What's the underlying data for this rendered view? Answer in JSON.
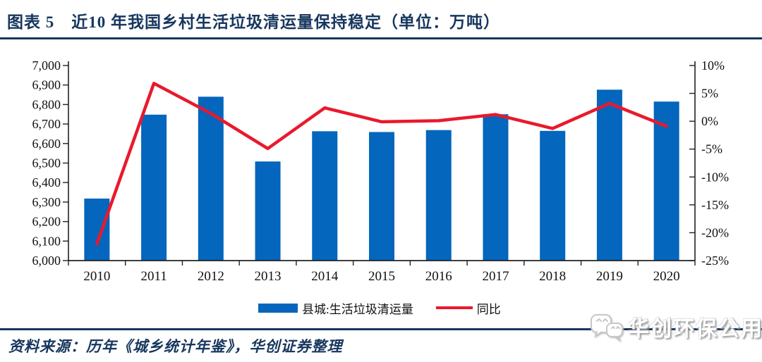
{
  "figure": {
    "title": "图表 5　近10 年我国乡村生活垃圾清运量保持稳定（单位：万吨）",
    "source_note": "资料来源：历年《城乡统计年鉴》，华创证券整理",
    "watermark_text": "华创环保公用"
  },
  "colors": {
    "title_navy": "#17375E",
    "bar_blue": "#0466BC",
    "line_red": "#E9192C",
    "axis": "#222222"
  },
  "legend": {
    "items": [
      {
        "label": "县城:生活垃圾清运量",
        "marker": "bar",
        "color": "#0466BC"
      },
      {
        "label": "同比",
        "marker": "line",
        "color": "#E9192C"
      }
    ]
  },
  "chart_data": {
    "type": "bar",
    "subtype": "bar+line combo, dual y-axes",
    "title": "近10 年我国乡村生活垃圾清运量保持稳定（单位：万吨）",
    "categories": [
      "2010",
      "2011",
      "2012",
      "2013",
      "2014",
      "2015",
      "2016",
      "2017",
      "2018",
      "2019",
      "2020"
    ],
    "series": [
      {
        "name": "县城:生活垃圾清运量",
        "type": "bar",
        "yaxis": "left",
        "color": "#0466BC",
        "values": [
          6318,
          6748,
          6840,
          6508,
          6663,
          6659,
          6669,
          6750,
          6665,
          6876,
          6815
        ]
      },
      {
        "name": "同比",
        "type": "line",
        "yaxis": "right",
        "color": "#E9192C",
        "values": [
          -22.0,
          6.8,
          1.4,
          -4.9,
          2.4,
          -0.1,
          0.1,
          1.2,
          -1.3,
          3.2,
          -0.9
        ]
      }
    ],
    "left_axis": {
      "min": 6000,
      "max": 7000,
      "step": 100,
      "tick_labels": [
        "7,000",
        "6,900",
        "6,800",
        "6,700",
        "6,600",
        "6,500",
        "6,400",
        "6,300",
        "6,200",
        "6,100",
        "6,000"
      ]
    },
    "right_axis": {
      "min": -25,
      "max": 10,
      "step": 5,
      "tick_labels": [
        "10%",
        "5%",
        "0%",
        "-5%",
        "-10%",
        "-15%",
        "-20%",
        "-25%"
      ]
    },
    "grid": false,
    "legend_position": "bottom"
  }
}
